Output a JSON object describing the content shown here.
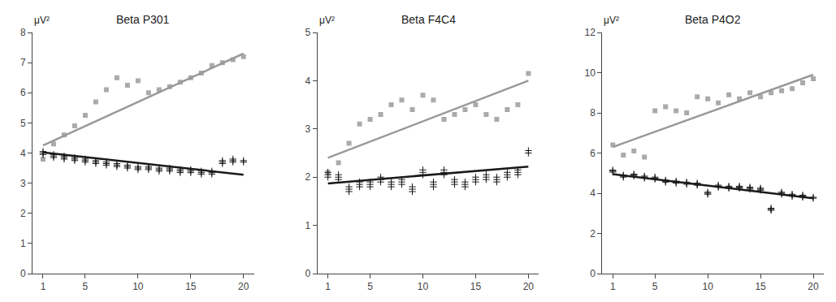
{
  "chart_data": [
    {
      "type": "scatter",
      "title": "Beta P301",
      "annotations": [
        "μV²"
      ],
      "xlim": [
        0,
        21
      ],
      "xticks": [
        1,
        5,
        10,
        15,
        20
      ],
      "ylim": [
        0,
        8
      ],
      "yticks": [
        0,
        1,
        2,
        3,
        4,
        5,
        6,
        7,
        8
      ],
      "grid": false,
      "series": [
        {
          "type": "scatter",
          "marker": "square",
          "color": "#aaaaaa",
          "x": [
            1,
            2,
            3,
            4,
            5,
            6,
            7,
            8,
            9,
            10,
            11,
            12,
            13,
            14,
            15,
            16,
            17,
            18,
            19,
            20
          ],
          "values": [
            3.8,
            4.3,
            4.6,
            4.9,
            5.25,
            5.7,
            6.1,
            6.5,
            6.25,
            6.4,
            6.0,
            6.1,
            6.2,
            6.35,
            6.5,
            6.65,
            6.9,
            7.0,
            7.1,
            7.2
          ]
        },
        {
          "type": "scatter",
          "marker": "plus",
          "color": "#1a1a1a",
          "x": [
            1,
            1,
            1,
            2,
            2,
            2,
            3,
            3,
            3,
            4,
            4,
            4,
            5,
            5,
            5,
            6,
            6,
            6,
            7,
            7,
            7,
            8,
            8,
            8,
            9,
            9,
            9,
            10,
            10,
            10,
            11,
            11,
            11,
            12,
            12,
            12,
            13,
            13,
            13,
            14,
            14,
            14,
            15,
            15,
            15,
            16,
            16,
            16,
            17,
            17,
            17,
            18,
            18,
            18,
            19,
            19,
            19,
            20,
            20
          ],
          "values": [
            4.0,
            3.95,
            4.05,
            3.9,
            3.85,
            3.95,
            3.85,
            3.8,
            3.9,
            3.8,
            3.75,
            3.85,
            3.75,
            3.7,
            3.8,
            3.7,
            3.65,
            3.75,
            3.65,
            3.6,
            3.7,
            3.6,
            3.55,
            3.65,
            3.55,
            3.5,
            3.6,
            3.5,
            3.45,
            3.55,
            3.5,
            3.45,
            3.55,
            3.45,
            3.4,
            3.5,
            3.45,
            3.4,
            3.5,
            3.4,
            3.35,
            3.45,
            3.4,
            3.35,
            3.45,
            3.35,
            3.3,
            3.4,
            3.35,
            3.3,
            3.4,
            3.7,
            3.65,
            3.75,
            3.75,
            3.7,
            3.8,
            3.7,
            3.75
          ]
        },
        {
          "type": "line",
          "line_style": "solid",
          "color": "#999999",
          "x": [
            1,
            20
          ],
          "values": [
            4.25,
            7.3
          ]
        },
        {
          "type": "line",
          "line_style": "solid",
          "color": "#1a1a1a",
          "x": [
            1,
            20
          ],
          "values": [
            4.02,
            3.28
          ]
        }
      ]
    },
    {
      "type": "scatter",
      "title": "Beta F4C4",
      "annotations": [
        "μV²"
      ],
      "xlim": [
        0,
        21
      ],
      "xticks": [
        1,
        5,
        10,
        15,
        20
      ],
      "ylim": [
        0,
        5
      ],
      "yticks": [
        0,
        1,
        2,
        3,
        4,
        5
      ],
      "grid": false,
      "series": [
        {
          "type": "scatter",
          "marker": "square",
          "color": "#aaaaaa",
          "x": [
            1,
            2,
            3,
            4,
            5,
            6,
            7,
            8,
            9,
            10,
            11,
            12,
            13,
            14,
            15,
            16,
            17,
            18,
            19,
            20
          ],
          "values": [
            2.1,
            2.3,
            2.7,
            3.1,
            3.2,
            3.3,
            3.5,
            3.6,
            3.4,
            3.7,
            3.6,
            3.2,
            3.3,
            3.4,
            3.5,
            3.3,
            3.2,
            3.4,
            3.5,
            4.15
          ]
        },
        {
          "type": "scatter",
          "marker": "plus",
          "color": "#1a1a1a",
          "x": [
            1,
            1,
            1,
            2,
            2,
            2,
            3,
            3,
            3,
            4,
            4,
            4,
            5,
            5,
            5,
            6,
            6,
            6,
            7,
            7,
            7,
            8,
            8,
            8,
            9,
            9,
            9,
            10,
            10,
            10,
            11,
            11,
            11,
            12,
            12,
            12,
            13,
            13,
            13,
            14,
            14,
            14,
            15,
            15,
            15,
            16,
            16,
            16,
            17,
            17,
            17,
            18,
            18,
            18,
            19,
            19,
            19,
            20,
            20
          ],
          "values": [
            2.05,
            2.0,
            2.1,
            2.0,
            1.95,
            2.05,
            1.75,
            1.7,
            1.8,
            1.85,
            1.8,
            1.9,
            1.85,
            1.8,
            1.9,
            1.95,
            1.9,
            2.0,
            1.85,
            1.8,
            1.9,
            1.9,
            1.85,
            1.95,
            1.75,
            1.7,
            1.8,
            2.1,
            2.05,
            2.15,
            1.85,
            1.8,
            1.9,
            2.1,
            2.05,
            2.15,
            1.9,
            1.85,
            1.95,
            1.85,
            1.8,
            1.9,
            1.95,
            1.9,
            2.0,
            2.0,
            1.95,
            2.05,
            1.95,
            1.9,
            2.0,
            2.05,
            2.0,
            2.1,
            2.1,
            2.05,
            2.15,
            2.55,
            2.5
          ]
        },
        {
          "type": "line",
          "line_style": "solid",
          "color": "#999999",
          "x": [
            1,
            20
          ],
          "values": [
            2.4,
            4.0
          ]
        },
        {
          "type": "line",
          "line_style": "solid",
          "color": "#1a1a1a",
          "x": [
            1,
            20
          ],
          "values": [
            1.87,
            2.22
          ]
        }
      ]
    },
    {
      "type": "scatter",
      "title": "Beta P4O2",
      "annotations": [
        "μV²"
      ],
      "xlim": [
        0,
        21
      ],
      "xticks": [
        1,
        5,
        10,
        15,
        20
      ],
      "ylim": [
        0,
        12
      ],
      "yticks": [
        0,
        2,
        4,
        6,
        8,
        10,
        12
      ],
      "grid": false,
      "series": [
        {
          "type": "scatter",
          "marker": "square",
          "color": "#aaaaaa",
          "x": [
            1,
            2,
            3,
            4,
            5,
            6,
            7,
            8,
            9,
            10,
            11,
            12,
            13,
            14,
            15,
            16,
            17,
            18,
            19,
            20
          ],
          "values": [
            6.4,
            5.9,
            6.1,
            5.8,
            8.1,
            8.3,
            8.1,
            8.0,
            8.8,
            8.7,
            8.5,
            8.9,
            8.7,
            9.0,
            8.8,
            9.0,
            9.1,
            9.2,
            9.5,
            9.7
          ]
        },
        {
          "type": "scatter",
          "marker": "plus",
          "color": "#1a1a1a",
          "x": [
            1,
            1,
            1,
            2,
            2,
            2,
            3,
            3,
            3,
            4,
            4,
            4,
            5,
            5,
            5,
            6,
            6,
            6,
            7,
            7,
            7,
            8,
            8,
            8,
            9,
            9,
            9,
            10,
            10,
            10,
            11,
            11,
            11,
            12,
            12,
            12,
            13,
            13,
            13,
            14,
            14,
            14,
            15,
            15,
            15,
            16,
            16,
            16,
            17,
            17,
            17,
            18,
            18,
            18,
            19,
            19,
            19,
            20,
            20
          ],
          "values": [
            5.1,
            5.05,
            5.15,
            4.85,
            4.8,
            4.9,
            4.9,
            4.85,
            4.95,
            4.8,
            4.75,
            4.85,
            4.75,
            4.7,
            4.8,
            4.6,
            4.55,
            4.65,
            4.55,
            4.5,
            4.6,
            4.5,
            4.45,
            4.55,
            4.45,
            4.4,
            4.5,
            4.0,
            3.95,
            4.05,
            4.35,
            4.3,
            4.4,
            4.3,
            4.25,
            4.35,
            4.3,
            4.25,
            4.35,
            4.25,
            4.2,
            4.3,
            4.2,
            4.15,
            4.25,
            3.2,
            3.15,
            3.25,
            4.0,
            3.95,
            4.05,
            3.9,
            3.85,
            3.95,
            3.85,
            3.8,
            3.9,
            3.8,
            3.75
          ]
        },
        {
          "type": "line",
          "line_style": "solid",
          "color": "#999999",
          "x": [
            1,
            20
          ],
          "values": [
            6.3,
            9.9
          ]
        },
        {
          "type": "line",
          "line_style": "solid",
          "color": "#1a1a1a",
          "x": [
            1,
            20
          ],
          "values": [
            4.95,
            3.75
          ]
        }
      ]
    }
  ]
}
